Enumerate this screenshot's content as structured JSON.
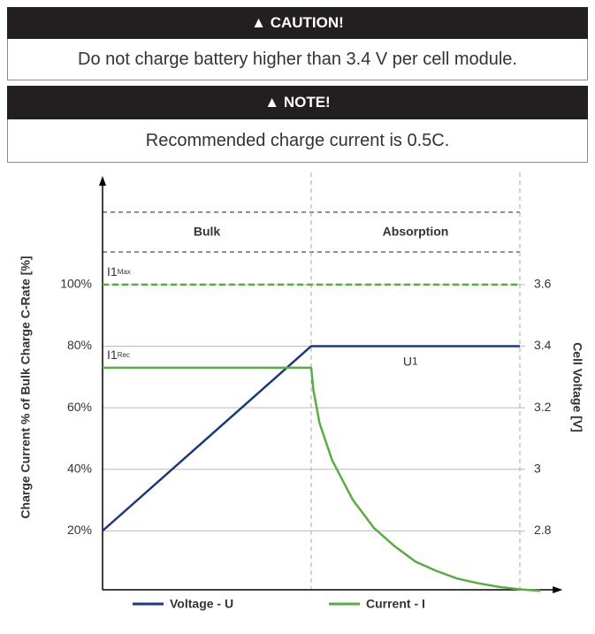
{
  "caution": {
    "title": "▲ CAUTION!",
    "text": "Do not charge battery higher than 3.4 V per cell module."
  },
  "note": {
    "title": "▲ NOTE!",
    "text": "Recommended charge current is 0.5C."
  },
  "chart_data": {
    "type": "line",
    "ylabel": "Charge Current % of Bulk Charge C-Rate [%]",
    "y2label": "Cell Voltage [V]",
    "xlim": [
      0,
      110
    ],
    "ylim": [
      0,
      135
    ],
    "yticks": [
      {
        "value": 20,
        "label": "20%"
      },
      {
        "value": 40,
        "label": "40%"
      },
      {
        "value": 60,
        "label": "60%"
      },
      {
        "value": 80,
        "label": "80%"
      },
      {
        "value": 100,
        "label": "100%"
      }
    ],
    "y2lim": [
      2.6,
      3.95
    ],
    "y2ticks": [
      2.8,
      3,
      3.2,
      3.4,
      3.6
    ],
    "grid": true,
    "phases": [
      {
        "name": "Bulk",
        "start": 0,
        "end": 50
      },
      {
        "name": "Absorption",
        "start": 50,
        "end": 100
      }
    ],
    "series": [
      {
        "name": "Voltage - U",
        "color": "#1c3a7a",
        "axis": "y2",
        "x": [
          0,
          50,
          100
        ],
        "values": [
          2.8,
          3.4,
          3.4
        ]
      },
      {
        "name": "Current - I",
        "color": "#5aab46",
        "x": [
          0,
          50,
          50.5,
          52,
          55,
          60,
          65,
          70,
          75,
          80,
          85,
          90,
          95,
          100,
          105
        ],
        "values": [
          73,
          73,
          66,
          55,
          43,
          30,
          21,
          15,
          10,
          7,
          4.5,
          3,
          1.8,
          1,
          0.5
        ]
      }
    ],
    "annotations": [
      {
        "label": "I1",
        "sub": "Max",
        "x": 0,
        "value": 100,
        "color": "#5aab46",
        "dashed": true
      },
      {
        "label": "I1",
        "sub": "Rec",
        "x": 0,
        "value": 73
      },
      {
        "label": "U",
        "sub": "1",
        "x": 72,
        "value": 3.4,
        "axis": "y2"
      }
    ],
    "legend": "bottom"
  }
}
